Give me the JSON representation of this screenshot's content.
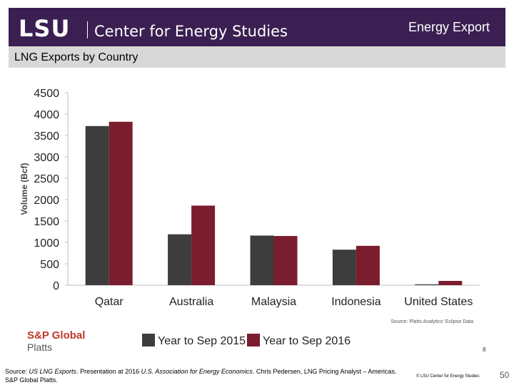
{
  "header": {
    "logo_text": "LSU",
    "center_name": "Center for Energy Studies",
    "slide_title": "Energy Export"
  },
  "subtitle": "LNG Exports by Country",
  "colors": {
    "header_bg": "#3b1f52",
    "subbar_bg": "#d8d8d8",
    "series_2015": "#3d3d3d",
    "series_2016": "#7a1d2e",
    "sp_red": "#c0392b"
  },
  "chart_data": {
    "type": "bar",
    "ylabel": "Volume (Bcf)",
    "ylim": [
      0,
      4500
    ],
    "yticks": [
      0,
      500,
      1000,
      1500,
      2000,
      2500,
      3000,
      3500,
      4000,
      4500
    ],
    "categories": [
      "Qatar",
      "Australia",
      "Malaysia",
      "Indonesia",
      "United States"
    ],
    "series": [
      {
        "name": "Year to Sep 2015",
        "color": "#3d3d3d",
        "values": [
          3720,
          1190,
          1160,
          830,
          20
        ]
      },
      {
        "name": "Year to Sep 2016",
        "color": "#7a1d2e",
        "values": [
          3820,
          1860,
          1150,
          920,
          100
        ]
      }
    ],
    "grid": false,
    "legend": "bottom",
    "source_note": "Source: Platts Analytics' Eclipse Data"
  },
  "sp_logo": {
    "name": "S&P Global",
    "sub": "Platts"
  },
  "small_page_number": "8",
  "footer": {
    "prefix": "Source: ",
    "italic_title": "US LNG Exports",
    "mid": ". Presentation at 2016 ",
    "italic_org": "U.S. Association for Energy Economics",
    "rest": ". Chris Pedersen, LNG Pricing Analyst – Americas.",
    "line2": "S&P Global Platts."
  },
  "copyright": "© LSU Center for Energy Studies",
  "slide_number": "50"
}
